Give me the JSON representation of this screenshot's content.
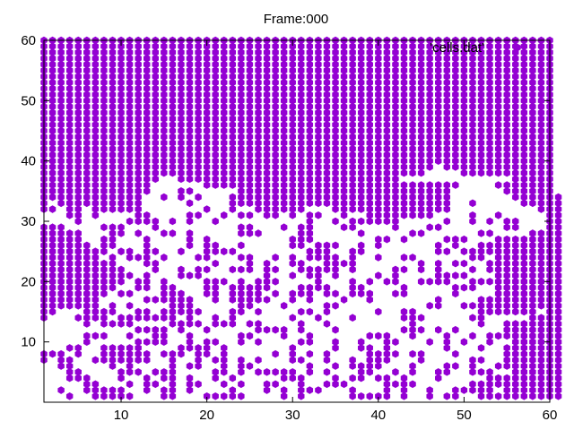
{
  "chart_data": {
    "type": "scatter",
    "title": "Frame:000",
    "xlabel": "",
    "ylabel": "",
    "xlim": [
      1,
      60
    ],
    "ylim": [
      0,
      60
    ],
    "xticks": [
      10,
      20,
      30,
      40,
      50,
      60
    ],
    "yticks": [
      10,
      20,
      30,
      40,
      50,
      60
    ],
    "grid": false,
    "legend": {
      "label": "'cells.dat'",
      "position": "top-right"
    },
    "marker": {
      "shape": "hexagon",
      "color": "#9400d3"
    },
    "grid_cells": {
      "x_range": [
        1,
        60
      ],
      "y_range": [
        1,
        60
      ]
    },
    "series": [
      {
        "name": "'cells.dat'",
        "rows": [
          "############################################################",
          "############################################################",
          "############################################################",
          "############################################################",
          "############################################################",
          "############################################################",
          "############################################################",
          "############################################################",
          "############################################################",
          "############################################################",
          "############################################################",
          "############################################################",
          "############################################################",
          "############################################################",
          "############################################################",
          "############################################################",
          "############################################################",
          "############################################################",
          "############################################################",
          "############################################################",
          "############################################################",
          "##############################################.#############",
          "#############################################....###########",
          "##############..##########################.............#####",
          "#############......##############################....#######",
          "#############...##.....#########################......######",
          "############..#.#.#...##########################.......######",
          "#.##########.....#....##########################..#.....#####",
          "##.##.######.......#..#..######...##############..........###",
          "...##.#....##....##..#.##.##.#.##..#..########....#..#.....##",
          "....#.....####.#.#..#..........#..#.######.....#..#.#.##...##",
          "###....###...#.........##...#.##...##....#...##.......##...##",
          "#####...##.#..##.#.....###....##.....#.....##......##....####",
          "#####..##...#....#.#.........###.......##.#....###...########",
          "######.##...#....#.##..#.....##.###..#.#......#.#..##########",
          "########.##.##..#..####........###..##........##.############",
          "#######.#.###.#...##...##..#.#.####.#..#..##......##.########",
          "#########...##......#...#.#..##..####.......#.#.##..#########",
          "##########...#..#.##..###.##..#####.#....##.#.#...#.#########",
          "###########.#...###.......#..#.##.#....#.#....####...########",
          "##########.##.#....###.#.###....#...#.#.##..####..###########",
          "#########..##.##...##.#####...####..##....#.....###..########",
          "########.##...###..##.####.#.###.##.###..##.....#....########",
          "#######.....######..#.#####..#.#...#..#.......#....##########",
          "#######.#.#....###.....##...#....##..........##..############",
          "##...####..##.#####...##.#....##.#.....#..##.......#######.##",
          "#...####.#######.#..#.#......#..#...#.....###.....##.....####",
          ".....#.####....####.###.##....#..#.........#.......#..#######",
          "...........####.#..#.....####.#...#.......###.#.#.....#######",
          ".....###..#..##..#.....##...#..#......###..#...#..#.#########",
          ".....#.....####..#.##..#.#....##..#..#..##...#.#.#..#..######",
          "...##..#####....####.#.......#....#..##.#......#...#..#######",
          "###.#..######.###.##.#.....#.#.#.#....####.##...#.....#######",
          "#.##..#######..#..#.##.#.#...##..#..#.###...#.....##..#######",
          "..##....#.#....#.##..#.##......#..#.####...#...##.#..########",
          "...##....###.###....##.#.#####.#.#...##..#.#..##..###..######",
          "...###...#..#.##.#..#.#.....###...#.##.##.#...#.....#########",
          ".....##...#.##.#.##..#.#..##..#..###....####......###########",
          "..#..#####..#.##.#....#...#.#.###...#...#.#..#..#####.#######",
          "...#..#####...##...#####....#.#.....#####.#..#.##..##########"
        ]
      }
    ]
  }
}
